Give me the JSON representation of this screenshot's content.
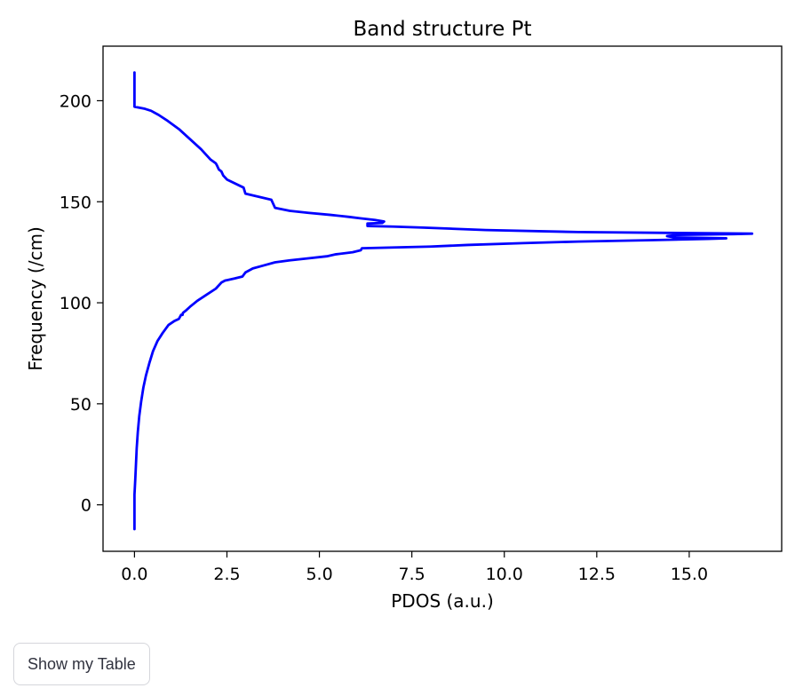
{
  "chart_data": {
    "type": "line",
    "title": "Band structure Pt",
    "xlabel": "PDOS (a.u.)",
    "ylabel": "Frequency (/cm)",
    "xlim": [
      -0.85,
      17.5
    ],
    "ylim": [
      -23,
      227
    ],
    "xticks": [
      0.0,
      2.5,
      5.0,
      7.5,
      10.0,
      12.5,
      15.0
    ],
    "xtick_labels": [
      "0.0",
      "2.5",
      "5.0",
      "7.5",
      "10.0",
      "12.5",
      "15.0"
    ],
    "yticks": [
      0,
      50,
      100,
      150,
      200
    ],
    "ytick_labels": [
      "0",
      "50",
      "100",
      "150",
      "200"
    ],
    "grid": false,
    "series": [
      {
        "color": "#0000ff",
        "x": [
          0.0,
          0.0,
          0.02,
          0.04,
          0.06,
          0.09,
          0.13,
          0.18,
          0.24,
          0.31,
          0.4,
          0.5,
          0.62,
          0.76,
          0.92,
          1.08,
          1.2,
          1.26,
          1.3,
          1.31,
          1.38,
          1.5,
          1.7,
          1.95,
          2.2,
          2.35,
          2.45,
          2.7,
          2.92,
          3.0,
          3.2,
          3.5,
          3.8,
          4.2,
          4.7,
          5.2,
          5.45,
          5.9,
          6.12,
          6.15,
          8.0,
          9.0,
          10.5,
          12.0,
          14.0,
          15.5,
          16.0,
          14.6,
          14.4,
          14.7,
          16.2,
          16.7,
          12.0,
          9.5,
          8.8,
          7.8,
          7.0,
          6.3,
          6.3,
          6.7,
          6.75,
          6.5,
          6.1,
          5.8,
          5.3,
          4.7,
          4.2,
          3.8,
          3.7,
          3.0,
          2.95,
          2.5,
          2.4,
          2.35,
          2.28,
          2.23,
          2.2,
          2.05,
          1.8,
          1.5,
          1.2,
          0.9,
          0.65,
          0.45,
          0.28,
          0.0,
          0.0,
          0.0
        ],
        "y": [
          -12,
          5,
          12,
          20,
          28,
          36,
          44,
          51,
          58,
          64,
          70,
          76,
          81,
          85,
          89,
          91,
          92,
          94,
          94,
          95,
          96,
          98,
          101,
          104,
          107,
          110,
          111,
          112,
          113,
          115,
          117,
          118.5,
          120,
          121,
          122,
          123,
          124,
          125,
          126,
          127,
          127.8,
          128.6,
          129.5,
          130.3,
          131.0,
          131.6,
          131.9,
          132.3,
          133.0,
          133.6,
          134.0,
          134.2,
          135.0,
          136.0,
          136.5,
          137.2,
          137.7,
          138.0,
          139.2,
          139.5,
          140.2,
          141.0,
          141.8,
          142.5,
          143.5,
          144.5,
          145.5,
          147.0,
          151.0,
          154.0,
          157.0,
          161.0,
          163.0,
          165.0,
          166.0,
          168.0,
          169.0,
          171.0,
          176.0,
          181.0,
          186.0,
          190.0,
          193.0,
          195.0,
          196.0,
          197.0,
          205,
          214
        ]
      }
    ]
  },
  "controls": {
    "table_button_label": "Show my Table"
  }
}
